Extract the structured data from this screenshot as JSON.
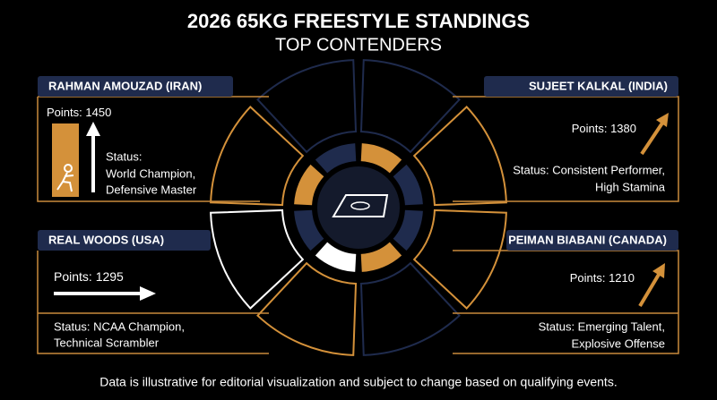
{
  "header": {
    "title": "2026 65KG FREESTYLE STANDINGS",
    "subtitle": "TOP CONTENDERS"
  },
  "contenders": [
    {
      "name": "RAHMAN AMOUZAD (IRAN)",
      "points_label": "Points:",
      "points": 1450,
      "status": [
        "Status:",
        "World Champion,",
        "Defensive Master"
      ]
    },
    {
      "name": "SUJEET KALKAL (INDIA)",
      "points_label": "Points:",
      "points": 1380,
      "status": [
        "Status: Consistent Performer,",
        "High Stamina"
      ]
    },
    {
      "name": "REAL WOODS (USA)",
      "points_label": "Points:",
      "points": 1295,
      "status": [
        "Status: NCAA Champion,",
        "Technical Scrambler"
      ]
    },
    {
      "name": "PEIMAN BIABANI (CANADA)",
      "points_label": "Points:",
      "points": 1210,
      "status": [
        "Status: Emerging Talent,",
        "Explosive Offense"
      ]
    }
  ],
  "footer": {
    "note": "Data is illustrative for editorial visualization and subject to change based on qualifying events."
  }
}
